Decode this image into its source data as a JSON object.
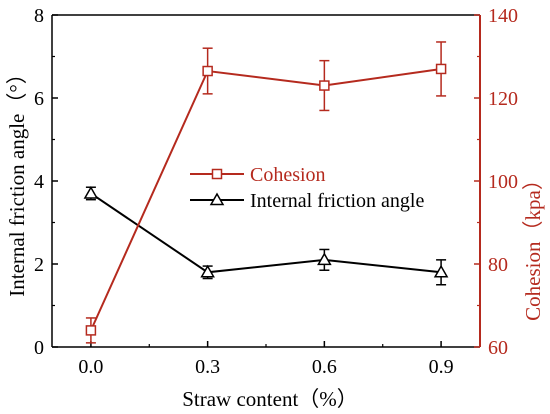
{
  "chart_data": {
    "type": "line",
    "x": [
      0.0,
      0.3,
      0.6,
      0.9
    ],
    "x_tick_labels": [
      "0.0",
      "0.3",
      "0.6",
      "0.9"
    ],
    "xlabel": "Straw content（%）",
    "ylabel_left": "Internal friction angle（°）",
    "ylabel_right": "Cohesion（kpa）",
    "ylim_left": [
      0,
      8
    ],
    "ylim_right": [
      60,
      140
    ],
    "y_ticks_left": [
      "0",
      "2",
      "4",
      "6",
      "8"
    ],
    "y_ticks_right": [
      "60",
      "80",
      "100",
      "120",
      "140"
    ],
    "legend_position": "center-right",
    "grid": false,
    "series": [
      {
        "name": "Cohesion",
        "axis": "right",
        "marker": "square",
        "color": "#b52a1e",
        "values": [
          64,
          126.5,
          123,
          127
        ],
        "error": [
          3,
          5.5,
          6,
          6.5
        ]
      },
      {
        "name": "Internal friction angle",
        "axis": "left",
        "marker": "triangle",
        "color": "#000000",
        "values": [
          3.7,
          1.8,
          2.1,
          1.8
        ],
        "error": [
          0.15,
          0.15,
          0.25,
          0.3
        ]
      }
    ]
  }
}
